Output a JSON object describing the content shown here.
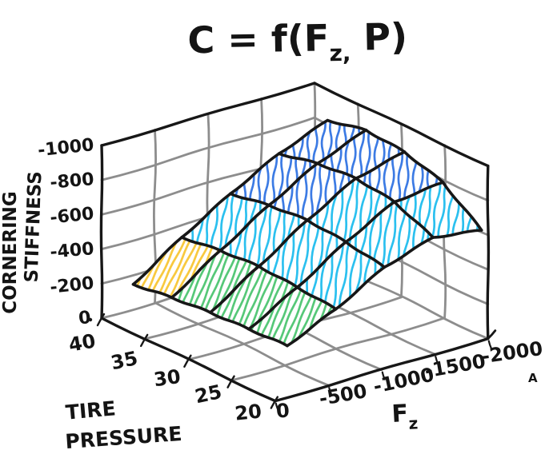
{
  "title": {
    "prefix": "C = f(F",
    "sub": "z,",
    "suffix": " P)"
  },
  "z_axis": {
    "label_line1": "CORNERING",
    "label_line2": "STIFFNESS",
    "ticks": [
      "-1000",
      "-800",
      "-600",
      "-400",
      "-200",
      "0"
    ]
  },
  "p_axis": {
    "label_line1": "TIRE",
    "label_line2": "PRESSURE",
    "ticks": [
      "40",
      "35",
      "30",
      "25",
      "20"
    ]
  },
  "fz_axis": {
    "label": "F",
    "label_sub": "z",
    "ticks": [
      "0",
      "-500",
      "-1000",
      "-1500",
      "-2000"
    ],
    "note": "A"
  },
  "chart_data": {
    "type": "surface",
    "title": "C = f(Fz, P)",
    "x_axis": {
      "name": "Fz",
      "ticks": [
        0,
        -500,
        -1000,
        -1500,
        -2000
      ]
    },
    "y_axis": {
      "name": "TIRE PRESSURE",
      "ticks": [
        40,
        35,
        30,
        25,
        20
      ]
    },
    "z_axis": {
      "name": "CORNERING STIFFNESS",
      "ticks": [
        0,
        200,
        400,
        600,
        800,
        1000
      ],
      "range": [
        0,
        1000
      ]
    },
    "surface_C_values": {
      "rows_Fz": [
        0,
        -500,
        -1000,
        -1500,
        -2000
      ],
      "cols_P": [
        40,
        35,
        30,
        25,
        20
      ],
      "C": [
        [
          200,
          230,
          250,
          260,
          270
        ],
        [
          390,
          420,
          435,
          420,
          400
        ],
        [
          560,
          600,
          620,
          600,
          560
        ],
        [
          710,
          760,
          780,
          750,
          650
        ],
        [
          820,
          870,
          850,
          780,
          610
        ]
      ]
    },
    "cell_colors": [
      [
        "yellow",
        "green",
        "green",
        "green"
      ],
      [
        "cyan",
        "cyan",
        "cyan",
        "cyan"
      ],
      [
        "blue",
        "blue",
        "cyan",
        "cyan"
      ],
      [
        "blue",
        "blue",
        "blue",
        "cyan"
      ]
    ],
    "palette": {
      "blue": "#3C7BE4",
      "cyan": "#2BC0EF",
      "yellow": "#F8C93F",
      "green": "#56C878"
    },
    "line_colors": {
      "mesh": "#171717",
      "frame": "#171717",
      "grid": "#8d8d8d"
    }
  }
}
